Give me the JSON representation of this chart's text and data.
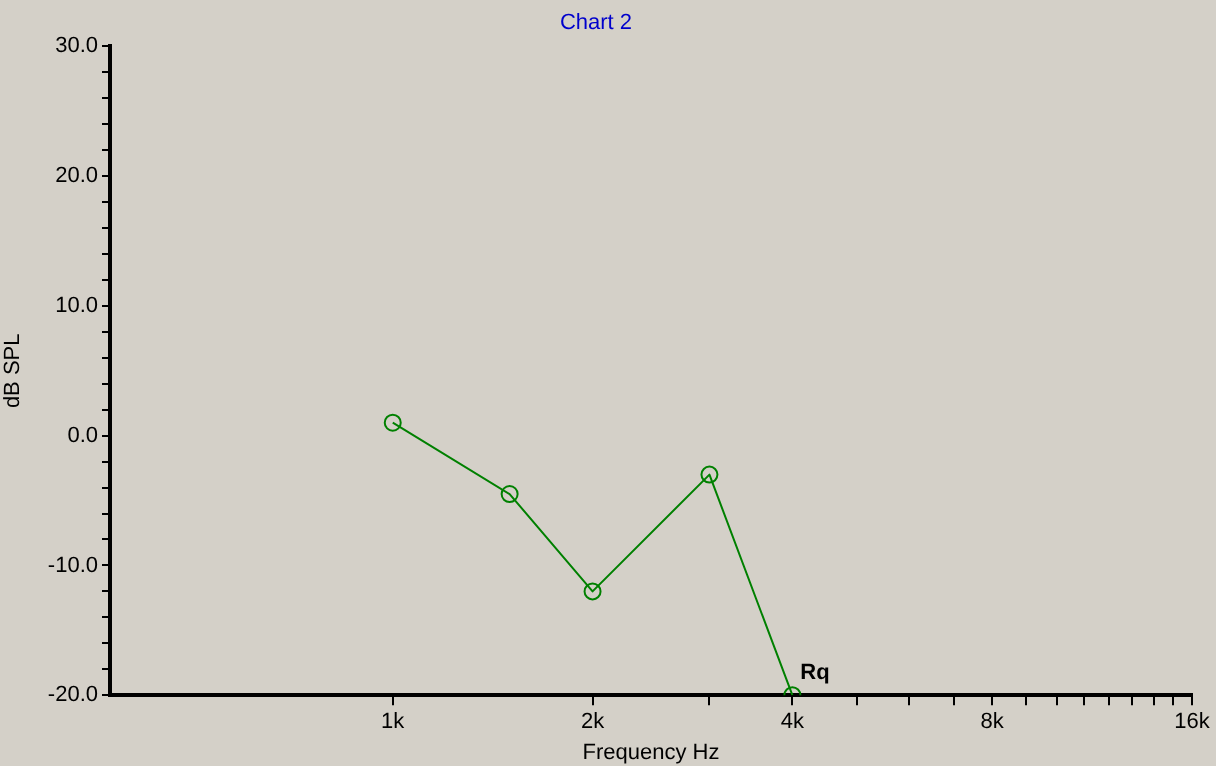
{
  "chart_data": {
    "type": "line",
    "title": "Chart 2",
    "xlabel": "Frequency Hz",
    "ylabel": "dB SPL",
    "log": "x",
    "x": [
      1000,
      1500,
      2000,
      3000,
      4000
    ],
    "series": [
      {
        "color": "#008000",
        "values": [
          1,
          -4.5,
          -12,
          -3,
          -20
        ]
      }
    ],
    "marker": "circle",
    "grid": false,
    "legend": false,
    "xlim": [
      375,
      16000
    ],
    "xticks": [
      {
        "value": 1000,
        "label": "1k"
      },
      {
        "value": 2000,
        "label": "2k"
      },
      {
        "value": 3000,
        "label": null
      },
      {
        "value": 4000,
        "label": "4k"
      },
      {
        "value": 5000,
        "label": null
      },
      {
        "value": 6000,
        "label": null
      },
      {
        "value": 7000,
        "label": null
      },
      {
        "value": 8000,
        "label": "8k"
      },
      {
        "value": 9000,
        "label": null
      },
      {
        "value": 10000,
        "label": null
      },
      {
        "value": 11000,
        "label": null
      },
      {
        "value": 12000,
        "label": null
      },
      {
        "value": 13000,
        "label": null
      },
      {
        "value": 14000,
        "label": null
      },
      {
        "value": 15000,
        "label": null
      },
      {
        "value": 16000,
        "label": "16k"
      }
    ],
    "ylim": [
      -20,
      30
    ],
    "yticks": [
      {
        "value": -20,
        "label": "-20.0"
      },
      {
        "value": -18,
        "label": null
      },
      {
        "value": -16,
        "label": null
      },
      {
        "value": -14,
        "label": null
      },
      {
        "value": -12,
        "label": null
      },
      {
        "value": -10,
        "label": "-10.0"
      },
      {
        "value": -8,
        "label": null
      },
      {
        "value": -6,
        "label": null
      },
      {
        "value": -4,
        "label": null
      },
      {
        "value": -2,
        "label": null
      },
      {
        "value": 0,
        "label": "0.0"
      },
      {
        "value": 2,
        "label": null
      },
      {
        "value": 4,
        "label": null
      },
      {
        "value": 6,
        "label": null
      },
      {
        "value": 8,
        "label": null
      },
      {
        "value": 10,
        "label": "10.0"
      },
      {
        "value": 12,
        "label": null
      },
      {
        "value": 14,
        "label": null
      },
      {
        "value": 16,
        "label": null
      },
      {
        "value": 18,
        "label": null
      },
      {
        "value": 20,
        "label": "20.0"
      },
      {
        "value": 22,
        "label": null
      },
      {
        "value": 24,
        "label": null
      },
      {
        "value": 26,
        "label": null
      },
      {
        "value": 28,
        "label": null
      },
      {
        "value": 30,
        "label": "30.0"
      }
    ],
    "annotations": [
      {
        "text": "Rq",
        "x": 4000,
        "y": -20
      }
    ]
  }
}
